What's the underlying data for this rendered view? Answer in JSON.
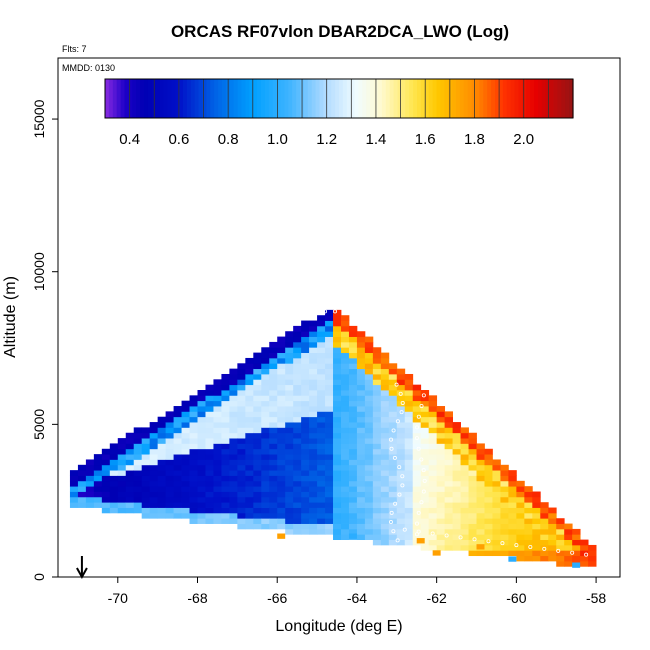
{
  "chart_data": {
    "type": "heatmap",
    "title": "ORCAS RF07vlon DBAR2DCA_LWO (Log)",
    "xlabel": "Longitude (deg E)",
    "ylabel": "Altitude (m)",
    "xlim": [
      -71.5,
      -57.4
    ],
    "ylim": [
      0,
      17000
    ],
    "x_ticks": [
      -70,
      -68,
      -66,
      -64,
      -62,
      -60,
      -58
    ],
    "y_ticks": [
      0,
      5000,
      10000,
      15000
    ],
    "annotations": {
      "flights": "Flts: 7",
      "date": "MMDD: 0130"
    },
    "colorbar": {
      "range": [
        0.3,
        2.2
      ],
      "ticks": [
        0.4,
        0.6,
        0.8,
        1.0,
        1.2,
        1.4,
        1.6,
        1.8,
        2.0
      ],
      "tick_labels": [
        "0.4",
        "0.6",
        "0.8",
        "1.0",
        "1.2",
        "1.4",
        "1.6",
        "1.8",
        "2.0"
      ],
      "stops": [
        [
          0.3,
          "#8a2be2"
        ],
        [
          0.38,
          "#1e00c8"
        ],
        [
          0.46,
          "#0000b4"
        ],
        [
          0.6,
          "#0010c8"
        ],
        [
          0.75,
          "#0064e6"
        ],
        [
          0.9,
          "#00a0ff"
        ],
        [
          1.05,
          "#40b4ff"
        ],
        [
          1.2,
          "#b4dcff"
        ],
        [
          1.32,
          "#f0fcff"
        ],
        [
          1.42,
          "#fffad0"
        ],
        [
          1.55,
          "#ffe650"
        ],
        [
          1.65,
          "#ffc800"
        ],
        [
          1.8,
          "#ff8c00"
        ],
        [
          1.92,
          "#ff3200"
        ],
        [
          2.05,
          "#e60000"
        ],
        [
          2.2,
          "#961414"
        ]
      ]
    },
    "grid": {
      "x_range": [
        -71.2,
        -58.0
      ],
      "bin_width_deg": 0.2,
      "bin_height_m": 175,
      "envelope_left_lon": -71.2,
      "envelope_apex": [
        -64.6,
        8900
      ],
      "envelope_right_lon": -58.0,
      "envelope_bottom_m": 300
    },
    "regions": [
      {
        "name": "upper-left-edge",
        "value": 0.45
      },
      {
        "name": "left-core-low",
        "value": 0.38
      },
      {
        "name": "central-blue",
        "value": 1.0
      },
      {
        "name": "mid-layer-band",
        "value": 1.28
      },
      {
        "name": "upper-orange-band",
        "value": 1.72
      },
      {
        "name": "right-edge",
        "value": 1.95
      },
      {
        "name": "lower-right",
        "value": 1.75
      }
    ],
    "marker": {
      "type": "arrow-down",
      "lon": -70.9
    }
  }
}
